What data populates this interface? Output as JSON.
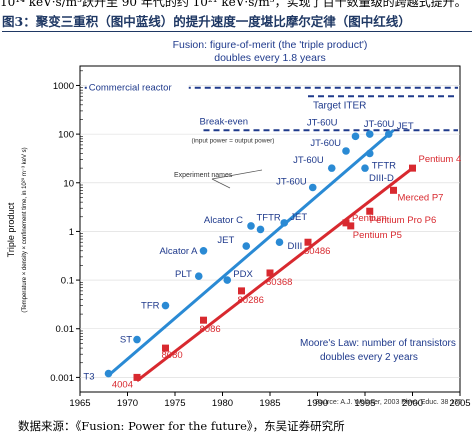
{
  "top_line": "10¹⁴ keV·s/m³跃升至 90 年代的约 10²¹ keV·s/m³，实现了百十数量级的跨越式提升。",
  "figure_title": "图3：聚变三重积（图中蓝线）的提升速度一度堪比摩尔定律（图中红线）",
  "source_note": "数据来源：《Fusion: Power for the future》，东吴证券研究所",
  "colors": {
    "blue": "#2a8ad4",
    "red": "#d8292f",
    "navy": "#1f3a8c",
    "axis": "#000000"
  },
  "chart_data": {
    "type": "scatter",
    "xlim": [
      1965,
      2005
    ],
    "ylim_log10": [
      -3.3,
      3.4
    ],
    "x_ticks": [
      1965,
      1970,
      1975,
      1980,
      1985,
      1990,
      1995,
      2000,
      2005
    ],
    "y_ticks": [
      {
        "value": 0.001,
        "label": "0.001"
      },
      {
        "value": 0.01,
        "label": "0.01"
      },
      {
        "value": 0.1,
        "label": "0.1"
      },
      {
        "value": 1,
        "label": "1"
      },
      {
        "value": 10,
        "label": "10"
      },
      {
        "value": 100,
        "label": "100"
      },
      {
        "value": 1000,
        "label": "1000"
      }
    ],
    "ylabel": "Triple product",
    "ylabel_sub": "(Temperature × density × confinement time, in 10²⁰ m⁻³ keV s)",
    "fusion_text_line1": "Fusion: figure-of-merit (the 'triple product')",
    "fusion_text_line2": "doubles every 1.8 years",
    "moore_text_line1": "Moore's Law: number of transistors",
    "moore_text_line2": "doubles every 2 years",
    "source_credit": "Source: A.J. Webster, 2003 Phys. Educ. 38 135",
    "references": [
      {
        "label": "Commercial reactor",
        "y": 900,
        "style": "dashed",
        "x_start": 1965.5
      },
      {
        "label": "Target ITER",
        "y": 600,
        "style": "dashed",
        "x_start": 1989
      },
      {
        "label": "Break-even",
        "sublabel": "(input power = output power)",
        "y": 120,
        "style": "dashed",
        "x_start": 1978
      }
    ],
    "experiment_names_label": "Experiment names",
    "fusion_trend": {
      "x": [
        1968,
        1998
      ],
      "y": [
        0.0011,
        120
      ]
    },
    "moore_trend": {
      "x": [
        1971,
        2000
      ],
      "y": [
        0.00085,
        20
      ]
    },
    "fusion_points": [
      {
        "name": "T3",
        "x": 1968,
        "y": 0.0012
      },
      {
        "name": "ST",
        "x": 1971,
        "y": 0.006
      },
      {
        "name": "TFR",
        "x": 1974,
        "y": 0.03
      },
      {
        "name": "PLT",
        "x": 1977.5,
        "y": 0.12
      },
      {
        "name": "Alcator A",
        "x": 1978,
        "y": 0.4
      },
      {
        "name": "PDX",
        "x": 1980.5,
        "y": 0.1
      },
      {
        "name": "JET",
        "x": 1982.5,
        "y": 0.5
      },
      {
        "name": "Alcator C",
        "x": 1983,
        "y": 1.3
      },
      {
        "name": "TFTR",
        "x": 1984,
        "y": 1.1
      },
      {
        "name": "DIII",
        "x": 1986,
        "y": 0.6
      },
      {
        "name": "JET",
        "x": 1986.5,
        "y": 1.5
      },
      {
        "name": "JT-60U",
        "x": 1989.5,
        "y": 8
      },
      {
        "name": "JT-60U",
        "x": 1991.5,
        "y": 20
      },
      {
        "name": "JT-60U",
        "x": 1993,
        "y": 45
      },
      {
        "name": "JT-60U",
        "x": 1994,
        "y": 90
      },
      {
        "name": "JT-60U",
        "x": 1995.5,
        "y": 100
      },
      {
        "name": "JET",
        "x": 1997.5,
        "y": 100
      },
      {
        "name": "TFTR",
        "x": 1995.5,
        "y": 40
      },
      {
        "name": "DIII-D",
        "x": 1995,
        "y": 20
      }
    ],
    "moore_points": [
      {
        "name": "4004",
        "x": 1971,
        "y": 0.001
      },
      {
        "name": "8080",
        "x": 1974,
        "y": 0.004
      },
      {
        "name": "8086",
        "x": 1978,
        "y": 0.015
      },
      {
        "name": "80286",
        "x": 1982,
        "y": 0.06
      },
      {
        "name": "80368",
        "x": 1985,
        "y": 0.14
      },
      {
        "name": "80486",
        "x": 1989,
        "y": 0.6
      },
      {
        "name": "Pentium",
        "x": 1993,
        "y": 1.5
      },
      {
        "name": "Pentium Pro P6",
        "x": 1995.5,
        "y": 2.6
      },
      {
        "name": "Pentium P5",
        "x": 1993.5,
        "y": 1.3
      },
      {
        "name": "Merced P7",
        "x": 1998,
        "y": 7
      },
      {
        "name": "Pentium 4",
        "x": 2000,
        "y": 20
      }
    ]
  }
}
